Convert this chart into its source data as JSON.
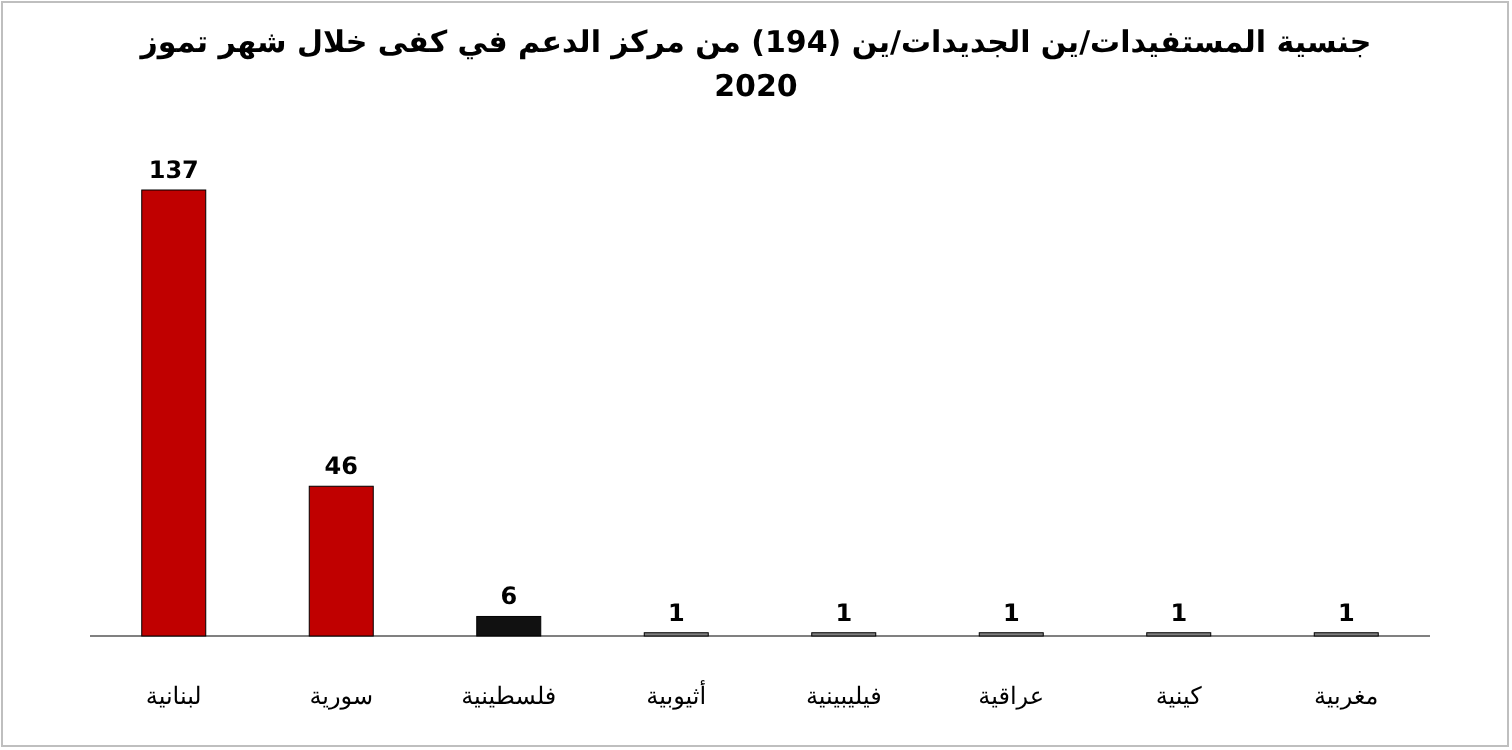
{
  "chart_data": {
    "type": "bar",
    "title": "جنسية المستفيدات/ين الجديدات/ين (194) من مركز الدعم في كفى خلال شهر تموز\n2020",
    "categories": [
      "لبنانية",
      "سورية",
      "فلسطينية",
      "أثيوبية",
      "فيليبينية",
      "عراقية",
      "كينية",
      "مغربية"
    ],
    "values": [
      137,
      46,
      6,
      1,
      1,
      1,
      1,
      1
    ],
    "colors": [
      "#c00000",
      "#c00000",
      "#111111",
      "#808080",
      "#808080",
      "#808080",
      "#808080",
      "#808080"
    ],
    "data_labels": true
  }
}
